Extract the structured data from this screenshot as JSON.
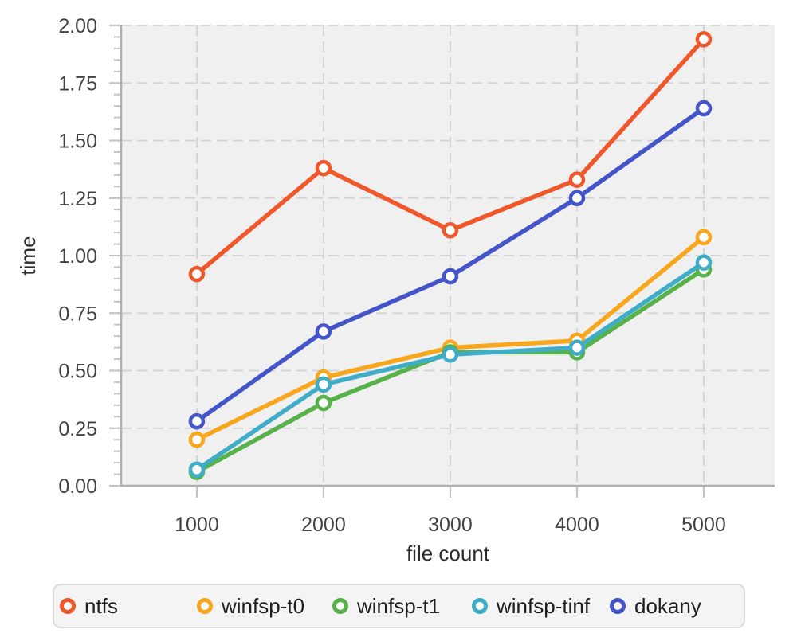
{
  "chart_data": {
    "type": "line",
    "title": "",
    "xlabel": "file count",
    "ylabel": "time",
    "x": [
      1000,
      2000,
      3000,
      4000,
      5000
    ],
    "xticklabels": [
      "1000",
      "2000",
      "3000",
      "4000",
      "5000"
    ],
    "xlim": [
      403,
      5560
    ],
    "ylim": [
      0,
      2
    ],
    "yticks": [
      0,
      0.25,
      0.5,
      0.75,
      1,
      1.25,
      1.5,
      1.75,
      2
    ],
    "yticklabels": [
      "0.00",
      "0.25",
      "0.50",
      "0.75",
      "1.00",
      "1.25",
      "1.50",
      "1.75",
      "2.00"
    ],
    "y_minor_tick_step": 0.05,
    "grid": "dashed major gridlines, horizontal and vertical",
    "marker": "open-circle",
    "legend_position": "bottom",
    "series": [
      {
        "name": "ntfs",
        "color": "#f0582c",
        "values": [
          0.92,
          1.38,
          1.11,
          1.33,
          1.94
        ]
      },
      {
        "name": "winfsp-t0",
        "color": "#f8a61c",
        "values": [
          0.2,
          0.47,
          0.6,
          0.63,
          1.08
        ]
      },
      {
        "name": "winfsp-t1",
        "color": "#58b24a",
        "values": [
          0.06,
          0.36,
          0.58,
          0.58,
          0.94
        ]
      },
      {
        "name": "winfsp-tinf",
        "color": "#3fadc8",
        "values": [
          0.07,
          0.44,
          0.57,
          0.6,
          0.97
        ]
      },
      {
        "name": "dokany",
        "color": "#4355c8",
        "values": [
          0.28,
          0.67,
          0.91,
          1.25,
          1.64
        ]
      }
    ]
  },
  "styles": {
    "page_bg": "#ffffff",
    "plot_bg": "#f0f0f0",
    "grid_color": "#d2d2d2",
    "spine_color": "#b0b0b0",
    "tick_color": "#c4c4c4",
    "tick_label_color": "#424242",
    "axis_title_color": "#2d2d2d",
    "legend_bg": "#f4f4f4",
    "legend_border": "#dbdbdb",
    "legend_text_color": "#1e1e1e"
  }
}
